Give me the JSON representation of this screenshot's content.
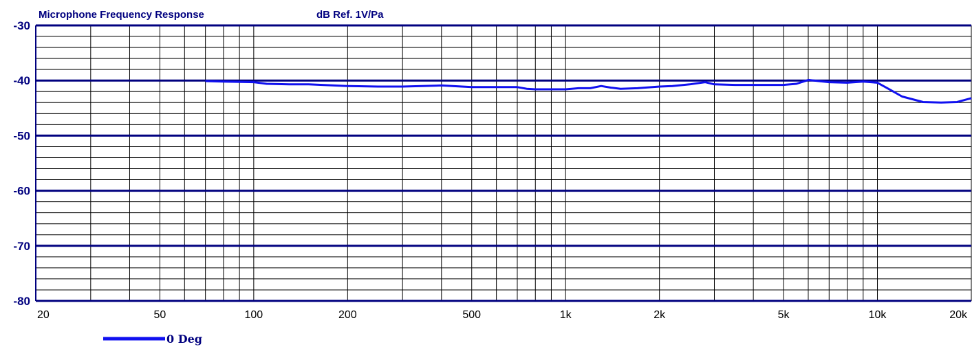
{
  "chart_data": {
    "type": "line",
    "title": "Microphone Frequency Response",
    "ylabel": "dB Ref. 1V/Pa",
    "xlabel": "",
    "x_scale": "log",
    "xlim": [
      20,
      20000
    ],
    "ylim": [
      -80,
      -30
    ],
    "y_ticks": [
      -30,
      -40,
      -50,
      -60,
      -70,
      -80
    ],
    "y_tick_labels": [
      "-30",
      "-40",
      "-50",
      "-60",
      "-70",
      "-80"
    ],
    "x_ticks": [
      20,
      50,
      100,
      200,
      500,
      1000,
      2000,
      5000,
      10000,
      20000
    ],
    "x_tick_labels": [
      "20",
      "50",
      "100",
      "200",
      "500",
      "1k",
      "2k",
      "5k",
      "10k",
      "20k"
    ],
    "grid": true,
    "legend_placement": "bottom-left",
    "colors": {
      "series": "#1010f0",
      "major_grid": "#00007f",
      "minor_grid": "#000000",
      "text": "#00007f"
    },
    "series": [
      {
        "name": "0 Deg",
        "x": [
          70,
          80,
          100,
          110,
          130,
          150,
          200,
          250,
          300,
          400,
          500,
          600,
          700,
          750,
          800,
          900,
          1000,
          1100,
          1200,
          1300,
          1400,
          1500,
          1700,
          2000,
          2200,
          2500,
          2800,
          3000,
          3500,
          4000,
          5000,
          5500,
          6000,
          7000,
          8000,
          9000,
          10000,
          11000,
          12000,
          14000,
          16000,
          18000,
          20000
        ],
        "y": [
          -40.1,
          -40.2,
          -40.3,
          -40.6,
          -40.7,
          -40.7,
          -41.0,
          -41.1,
          -41.1,
          -40.9,
          -41.2,
          -41.2,
          -41.2,
          -41.5,
          -41.6,
          -41.6,
          -41.6,
          -41.4,
          -41.4,
          -41.0,
          -41.3,
          -41.5,
          -41.4,
          -41.1,
          -41.0,
          -40.7,
          -40.3,
          -40.7,
          -40.8,
          -40.8,
          -40.8,
          -40.6,
          -39.9,
          -40.3,
          -40.4,
          -40.2,
          -40.4,
          -41.7,
          -42.9,
          -43.9,
          -44.0,
          -43.9,
          -43.2
        ]
      }
    ]
  }
}
